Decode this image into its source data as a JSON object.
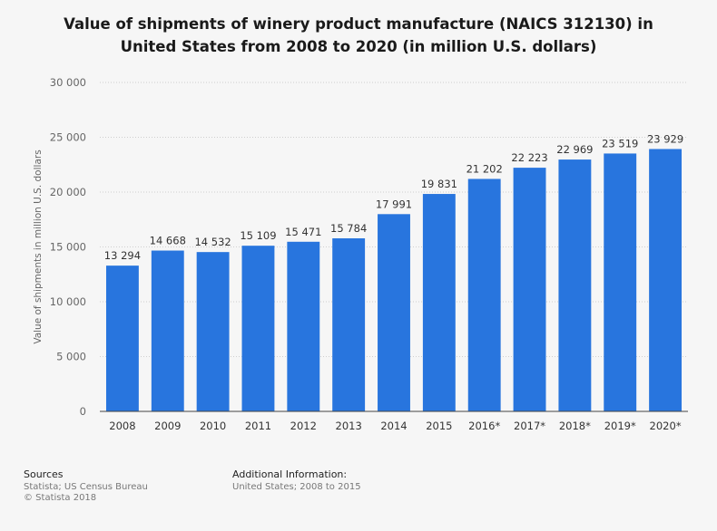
{
  "chart_data": {
    "type": "bar",
    "title": "Value of shipments of winery product manufacture (NAICS 312130) in United States from 2008 to 2020 (in million U.S. dollars)",
    "title_lines": [
      "Value of shipments of winery product manufacture (NAICS 312130) in",
      "United States from 2008 to 2020 (in million U.S. dollars)"
    ],
    "ylabel": "Value of shipments in million U.S. dollars",
    "xlabel": "",
    "ylim": [
      0,
      30000
    ],
    "yticks": [
      0,
      5000,
      10000,
      15000,
      20000,
      25000,
      30000
    ],
    "ytick_labels": [
      "0",
      "5 000",
      "10 000",
      "15 000",
      "20 000",
      "25 000",
      "30 000"
    ],
    "categories": [
      "2008",
      "2009",
      "2010",
      "2011",
      "2012",
      "2013",
      "2014",
      "2015",
      "2016*",
      "2017*",
      "2018*",
      "2019*",
      "2020*"
    ],
    "values": [
      13294,
      14668,
      14532,
      15109,
      15471,
      15784,
      17991,
      19831,
      21202,
      22223,
      22969,
      23519,
      23929
    ],
    "value_labels": [
      "13 294",
      "14 668",
      "14 532",
      "15 109",
      "15 471",
      "15 784",
      "17 991",
      "19 831",
      "21 202",
      "22 223",
      "22 969",
      "23 519",
      "23 929"
    ],
    "bar_color": "#2875de",
    "grid": true
  },
  "footer": {
    "sources_heading": "Sources",
    "sources_line1": "Statista; US Census Bureau",
    "sources_line2": "© Statista 2018",
    "additional_heading": "Additional Information:",
    "additional_line1": "United States; 2008 to 2015"
  }
}
